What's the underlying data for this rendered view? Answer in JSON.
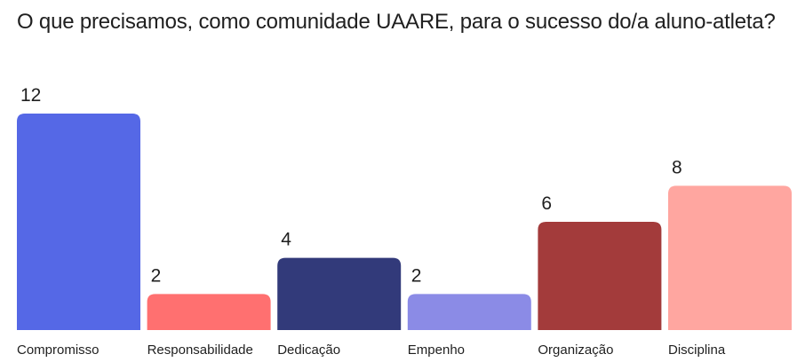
{
  "chart_data": {
    "type": "bar",
    "title": "O que precisamos, como comunidade UAARE, para o sucesso do/a aluno-atleta?",
    "categories": [
      "Compromisso",
      "Responsabilidade",
      "Dedicação",
      "Empenho",
      "Organização",
      "Disciplina"
    ],
    "values": [
      12,
      2,
      4,
      2,
      6,
      8
    ],
    "colors": [
      "#5568e6",
      "#ff7070",
      "#323a7a",
      "#8b8be6",
      "#a33b3b",
      "#ffa6a0"
    ],
    "ylim": [
      0,
      12
    ],
    "grid": false,
    "legend": "none"
  }
}
